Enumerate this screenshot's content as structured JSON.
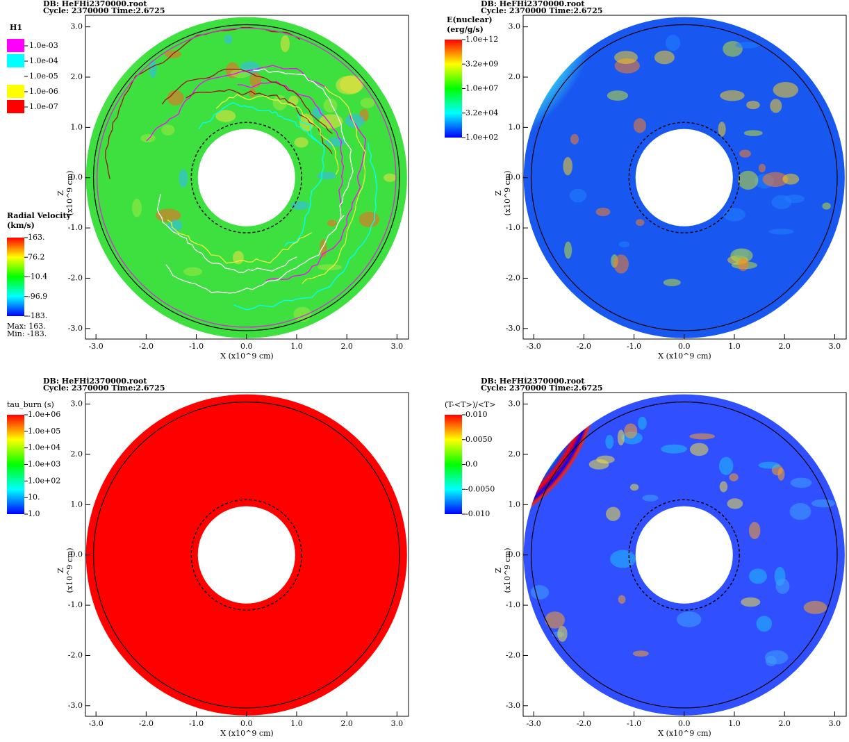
{
  "chart_data": [
    {
      "type": "field",
      "db": "DB: HeFHi2370000.root",
      "cycle": "Cycle: 2370000  Time:2.6725",
      "xlabel": "X (x10^9 cm)",
      "ylabel": [
        "Z",
        "(x10^9 cm)"
      ],
      "xlim": [
        -3.21,
        3.23
      ],
      "ylim": [
        -3.21,
        3.23
      ],
      "xticks": [
        {
          "value": -3,
          "label": "-3.0"
        },
        {
          "value": -2,
          "label": "-2.0"
        },
        {
          "value": -1,
          "label": "-1.0"
        },
        {
          "value": 0,
          "label": "0.0"
        },
        {
          "value": 1,
          "label": "1.0"
        },
        {
          "value": 2,
          "label": "2.0"
        },
        {
          "value": 3,
          "label": "3.0"
        }
      ],
      "yticks": [
        {
          "value": -3,
          "label": "-3.0"
        },
        {
          "value": -2,
          "label": "-2.0"
        },
        {
          "value": -1,
          "label": "-1.0"
        },
        {
          "value": 0,
          "label": "0.0"
        },
        {
          "value": 1,
          "label": "1.0"
        },
        {
          "value": 2,
          "label": "2.0"
        },
        {
          "value": 3,
          "label": "3.0"
        }
      ],
      "contour_legend": {
        "title": "H1",
        "labels": [
          "1.0e-03",
          "1.0e-04",
          "1.0e-05",
          "1.0e-06",
          "1.0e-07"
        ],
        "colors": [
          "#ff00ff",
          "#00ffff",
          "#ffffff",
          "#ffff00",
          "#ff0000"
        ]
      },
      "colorbar": {
        "title": [
          "Radial Velocity",
          "(km/s)"
        ],
        "labels": [
          "163.",
          "76.2",
          "-10.4",
          "-96.9",
          "-183."
        ],
        "colors": [
          "#ff0000",
          "#ffff00",
          "#00ff00",
          "#00ffff",
          "#0000ff"
        ]
      },
      "max": "Max:  163.",
      "min": "Min: -183."
    },
    {
      "type": "field",
      "db": "DB: HeFHi2370000.root",
      "cycle": "Cycle: 2370000  Time:2.6725",
      "xlabel": "X (x10^9 cm)",
      "ylabel": [
        "Z",
        "(x10^9 cm)"
      ],
      "xlim": [
        -3.21,
        3.23
      ],
      "ylim": [
        -3.21,
        3.23
      ],
      "xticks": [
        {
          "value": -3,
          "label": "-3.0"
        },
        {
          "value": -2,
          "label": "-2.0"
        },
        {
          "value": -1,
          "label": "-1.0"
        },
        {
          "value": 0,
          "label": "0.0"
        },
        {
          "value": 1,
          "label": "1.0"
        },
        {
          "value": 2,
          "label": "2.0"
        },
        {
          "value": 3,
          "label": "3.0"
        }
      ],
      "yticks": [
        {
          "value": -3,
          "label": "-3.0"
        },
        {
          "value": -2,
          "label": "-2.0"
        },
        {
          "value": -1,
          "label": "-1.0"
        },
        {
          "value": 0,
          "label": "0.0"
        },
        {
          "value": 1,
          "label": "1.0"
        },
        {
          "value": 2,
          "label": "2.0"
        },
        {
          "value": 3,
          "label": "3.0"
        }
      ],
      "colorbar": {
        "title": [
          "E(nuclear)",
          "(erg/g/s)"
        ],
        "labels": [
          "1.0e+12",
          "3.2e+09",
          "1.0e+07",
          "3.2e+04",
          "1.0e+02"
        ],
        "colors": [
          "#ff0000",
          "#ffff00",
          "#00ff00",
          "#00ffff",
          "#0000ff"
        ]
      }
    },
    {
      "type": "field",
      "db": "DB: HeFHi2370000.root",
      "cycle": "Cycle: 2370000  Time:2.6725",
      "xlabel": "X (x10^9 cm)",
      "ylabel": [
        "Z",
        "(x10^9 cm)"
      ],
      "xlim": [
        -3.21,
        3.23
      ],
      "ylim": [
        -3.21,
        3.23
      ],
      "xticks": [
        {
          "value": -3,
          "label": "-3.0"
        },
        {
          "value": -2,
          "label": "-2.0"
        },
        {
          "value": -1,
          "label": "-1.0"
        },
        {
          "value": 0,
          "label": "0.0"
        },
        {
          "value": 1,
          "label": "1.0"
        },
        {
          "value": 2,
          "label": "2.0"
        },
        {
          "value": 3,
          "label": "3.0"
        }
      ],
      "yticks": [
        {
          "value": -3,
          "label": "-3.0"
        },
        {
          "value": -2,
          "label": "-2.0"
        },
        {
          "value": -1,
          "label": "-1.0"
        },
        {
          "value": 0,
          "label": "0.0"
        },
        {
          "value": 1,
          "label": "1.0"
        },
        {
          "value": 2,
          "label": "2.0"
        },
        {
          "value": 3,
          "label": "3.0"
        }
      ],
      "colorbar": {
        "title": [
          "tau_burn (s)"
        ],
        "labels": [
          "1.0e+06",
          "1.0e+05",
          "1.0e+04",
          "1.0e+03",
          "1.0e+02",
          "10.",
          "1.0"
        ],
        "colors": [
          "#ff0000",
          "#ffff00",
          "#00ff00",
          "#00ffff",
          "#0000ff"
        ]
      }
    },
    {
      "type": "field",
      "db": "DB: HeFHi2370000.root",
      "cycle": "Cycle: 2370000  Time:2.6725",
      "xlabel": "X (x10^9 cm)",
      "ylabel": [
        "Z",
        "(x10^9 cm)"
      ],
      "xlim": [
        -3.21,
        3.23
      ],
      "ylim": [
        -3.21,
        3.23
      ],
      "xticks": [
        {
          "value": -3,
          "label": "-3.0"
        },
        {
          "value": -2,
          "label": "-2.0"
        },
        {
          "value": -1,
          "label": "-1.0"
        },
        {
          "value": 0,
          "label": "0.0"
        },
        {
          "value": 1,
          "label": "1.0"
        },
        {
          "value": 2,
          "label": "2.0"
        },
        {
          "value": 3,
          "label": "3.0"
        }
      ],
      "yticks": [
        {
          "value": -3,
          "label": "-3.0"
        },
        {
          "value": -2,
          "label": "-2.0"
        },
        {
          "value": -1,
          "label": "-1.0"
        },
        {
          "value": 0,
          "label": "0.0"
        },
        {
          "value": 1,
          "label": "1.0"
        },
        {
          "value": 2,
          "label": "2.0"
        },
        {
          "value": 3,
          "label": "3.0"
        }
      ],
      "colorbar": {
        "title": [
          "(T-<T>)/<T>"
        ],
        "labels": [
          "0.010",
          "0.0050",
          "0.0",
          "-0.0050",
          "-0.010"
        ],
        "colors": [
          "#ff0000",
          "#ffff00",
          "#00ff00",
          "#00ffff",
          "#0000ff"
        ]
      }
    }
  ]
}
